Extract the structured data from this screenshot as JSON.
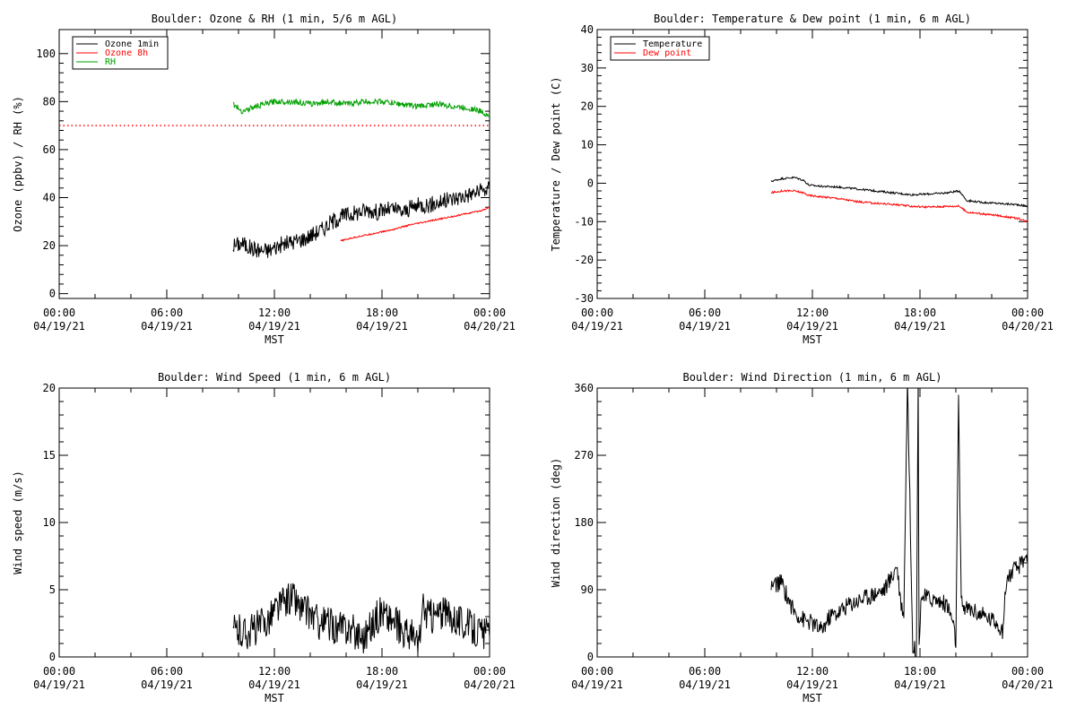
{
  "chart_data": [
    {
      "type": "line",
      "title": "Boulder: Ozone & RH (1 min, 5/6 m AGL)",
      "xlabel": "",
      "ylabel": "Ozone (ppbv) / RH (%)",
      "xlim": [
        0,
        24
      ],
      "ylim": [
        -2,
        110
      ],
      "yticks": [
        0,
        20,
        40,
        60,
        80,
        100
      ],
      "reference_line": {
        "y": 70,
        "style": "dotted",
        "color": "#ff0000"
      },
      "legend": {
        "placement": "top-left",
        "entries": [
          {
            "label": "Ozone 1min",
            "color": "#000000"
          },
          {
            "label": "Ozone 8h",
            "color": "#ff0000"
          },
          {
            "label": "RH",
            "color": "#00a000"
          }
        ]
      },
      "series": [
        {
          "name": "Ozone 1min",
          "color": "#000000",
          "x": [
            9.7,
            10.2,
            10.7,
            11.2,
            11.7,
            12.2,
            12.7,
            13.2,
            13.7,
            14.2,
            14.7,
            15.2,
            15.7,
            16.2,
            16.7,
            17.2,
            17.7,
            18.2,
            18.7,
            19.2,
            19.7,
            20.2,
            20.7,
            21.2,
            21.7,
            22.2,
            22.7,
            23.2,
            23.7,
            24.0
          ],
          "y": [
            20,
            21,
            19,
            18,
            18,
            20,
            21,
            22,
            23,
            25,
            27,
            30,
            32,
            33,
            34,
            35,
            34,
            35,
            35,
            34,
            36,
            37,
            37,
            38,
            39,
            40,
            41,
            42,
            43,
            44
          ],
          "noise": 3.5
        },
        {
          "name": "Ozone 8h",
          "color": "#ff0000",
          "x": [
            15.7,
            16.5,
            17.5,
            18.5,
            19.5,
            20.5,
            21.5,
            22.5,
            23.5,
            24.0
          ],
          "y": [
            22,
            23.5,
            25,
            26.5,
            28.5,
            30,
            31.5,
            33,
            34.5,
            36
          ],
          "noise": 0.3
        },
        {
          "name": "RH",
          "color": "#00a000",
          "x": [
            9.7,
            10.2,
            11.0,
            12.0,
            13.0,
            14.0,
            15.0,
            16.0,
            17.0,
            18.0,
            19.0,
            20.0,
            21.0,
            22.0,
            23.0,
            23.5,
            24.0
          ],
          "y": [
            79,
            76,
            78,
            80,
            80,
            79,
            80,
            79,
            80,
            80,
            79,
            78,
            79,
            78,
            77,
            76,
            74
          ],
          "noise": 1.2
        }
      ],
      "xticks": [
        {
          "time": "00:00",
          "date": "04/19/21"
        },
        {
          "time": "06:00",
          "date": "04/19/21"
        },
        {
          "time": "12:00",
          "date": "04/19/21"
        },
        {
          "time": "18:00",
          "date": "04/19/21"
        },
        {
          "time": "00:00",
          "date": "04/20/21"
        }
      ],
      "xaxis_name": "MST"
    },
    {
      "type": "line",
      "title": "Boulder: Temperature & Dew point (1 min, 6 m AGL)",
      "ylabel": "Temperature / Dew point (C)",
      "xlim": [
        0,
        24
      ],
      "ylim": [
        -30,
        40
      ],
      "yticks": [
        -30,
        -20,
        -10,
        0,
        10,
        20,
        30,
        40
      ],
      "legend": {
        "placement": "top-left",
        "entries": [
          {
            "label": "Temperature",
            "color": "#000000"
          },
          {
            "label": "Dew point",
            "color": "#ff0000"
          }
        ]
      },
      "series": [
        {
          "name": "Temperature",
          "color": "#000000",
          "x": [
            9.7,
            10.3,
            11.0,
            11.5,
            11.8,
            12.5,
            13.5,
            14.5,
            15.5,
            16.5,
            17.5,
            18.5,
            19.5,
            20.2,
            20.6,
            21.5,
            22.5,
            23.5,
            24.0
          ],
          "y": [
            0.5,
            1.2,
            1.5,
            0.8,
            -0.5,
            -0.8,
            -1.0,
            -1.5,
            -2.0,
            -2.5,
            -3.0,
            -2.8,
            -2.5,
            -2.0,
            -4.5,
            -5.0,
            -5.3,
            -5.6,
            -6.0
          ],
          "noise": 0.25
        },
        {
          "name": "Dew point",
          "color": "#ff0000",
          "x": [
            9.7,
            10.3,
            11.0,
            11.5,
            11.8,
            12.5,
            13.5,
            14.5,
            15.5,
            16.5,
            17.5,
            18.5,
            19.5,
            20.2,
            20.6,
            21.5,
            22.5,
            23.5,
            24.0
          ],
          "y": [
            -2.5,
            -2.0,
            -2.0,
            -2.5,
            -3.2,
            -3.5,
            -4.0,
            -4.8,
            -5.2,
            -5.5,
            -6.0,
            -6.2,
            -6.0,
            -6.0,
            -7.5,
            -8.0,
            -8.5,
            -9.2,
            -10.0
          ],
          "noise": 0.25
        }
      ],
      "xticks": [
        {
          "time": "00:00",
          "date": "04/19/21"
        },
        {
          "time": "06:00",
          "date": "04/19/21"
        },
        {
          "time": "12:00",
          "date": "04/19/21"
        },
        {
          "time": "18:00",
          "date": "04/19/21"
        },
        {
          "time": "00:00",
          "date": "04/20/21"
        }
      ],
      "xaxis_name": "MST"
    },
    {
      "type": "line",
      "title": "Boulder: Wind Speed (1 min, 6 m AGL)",
      "ylabel": "Wind speed (m/s)",
      "xlim": [
        0,
        24
      ],
      "ylim": [
        0,
        20
      ],
      "yticks": [
        0,
        5,
        10,
        15,
        20
      ],
      "series": [
        {
          "name": "",
          "color": "#000000",
          "x": [
            9.7,
            10.5,
            11.5,
            12.0,
            12.5,
            13.0,
            13.5,
            14.0,
            14.5,
            15.0,
            15.5,
            16.0,
            16.5,
            17.0,
            17.5,
            18.0,
            18.3,
            18.7,
            19.2,
            19.7,
            20.0,
            20.3,
            20.7,
            21.2,
            22.0,
            22.5,
            23.0,
            23.5,
            24.0
          ],
          "y": [
            2.0,
            1.8,
            2.5,
            3.5,
            4.0,
            4.5,
            3.5,
            3.2,
            2.5,
            2.5,
            2.0,
            2.2,
            1.8,
            1.5,
            2.5,
            3.5,
            3.0,
            2.5,
            2.0,
            1.5,
            0.8,
            3.5,
            3.0,
            3.2,
            3.0,
            2.5,
            2.2,
            1.8,
            1.5
          ],
          "noise": 1.3
        }
      ],
      "xticks": [
        {
          "time": "00:00",
          "date": "04/19/21"
        },
        {
          "time": "06:00",
          "date": "04/19/21"
        },
        {
          "time": "12:00",
          "date": "04/19/21"
        },
        {
          "time": "18:00",
          "date": "04/19/21"
        },
        {
          "time": "00:00",
          "date": "04/20/21"
        }
      ],
      "xaxis_name": "MST"
    },
    {
      "type": "line",
      "title": "Boulder: Wind Direction (1 min, 6 m AGL)",
      "ylabel": "Wind direction (deg)",
      "xlim": [
        0,
        24
      ],
      "ylim": [
        0,
        360
      ],
      "yticks": [
        0,
        90,
        180,
        270,
        360
      ],
      "series": [
        {
          "name": "",
          "color": "#000000",
          "x": [
            9.7,
            10.3,
            10.6,
            11.0,
            11.5,
            12.0,
            12.5,
            13.0,
            13.5,
            14.0,
            14.5,
            15.0,
            15.5,
            16.0,
            16.5,
            16.7,
            16.95,
            17.1,
            17.3,
            17.6,
            17.8,
            17.9,
            17.95,
            18.05,
            18.2,
            18.6,
            19.0,
            19.5,
            19.8,
            20.0,
            20.15,
            20.3,
            20.6,
            21.0,
            21.5,
            22.0,
            22.4,
            22.6,
            22.8,
            23.0,
            23.5,
            24.0
          ],
          "y": [
            95,
            100,
            80,
            60,
            50,
            45,
            35,
            55,
            60,
            70,
            75,
            80,
            85,
            90,
            110,
            125,
            70,
            60,
            370,
            15,
            5,
            370,
            10,
            80,
            80,
            78,
            75,
            70,
            50,
            20,
            340,
            70,
            65,
            62,
            55,
            50,
            45,
            30,
            100,
            110,
            120,
            140
          ],
          "noise": 12
        }
      ],
      "xticks": [
        {
          "time": "00:00",
          "date": "04/19/21"
        },
        {
          "time": "06:00",
          "date": "04/19/21"
        },
        {
          "time": "12:00",
          "date": "04/19/21"
        },
        {
          "time": "18:00",
          "date": "04/19/21"
        },
        {
          "time": "00:00",
          "date": "04/20/21"
        }
      ],
      "xaxis_name": "MST"
    }
  ]
}
